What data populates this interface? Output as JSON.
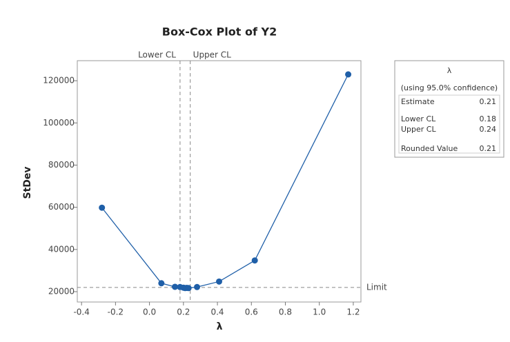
{
  "chart_data": {
    "type": "line",
    "title": "Box-Cox Plot of Y2",
    "x_label": "λ",
    "y_label": "StDev",
    "x": [
      -0.28,
      0.07,
      0.15,
      0.18,
      0.2,
      0.21,
      0.22,
      0.23,
      0.28,
      0.41,
      0.62,
      1.17
    ],
    "values": [
      59800,
      24000,
      22300,
      22200,
      21900,
      21700,
      21800,
      21700,
      22200,
      24800,
      34800,
      123000
    ],
    "color": "#1f5fa8",
    "xlim": [
      -0.425,
      1.245
    ],
    "ylim": [
      15100,
      129500
    ],
    "xticks": [
      -0.4,
      -0.2,
      {
        "value": 0,
        "label": "0.0"
      },
      0.2,
      0.4,
      0.6,
      0.8,
      {
        "value": 1,
        "label": "1.0"
      },
      1.2
    ],
    "yticks": [
      20000,
      40000,
      60000,
      80000,
      100000,
      120000
    ],
    "ref_lines": {
      "lower_cl": {
        "value": 0.18,
        "label": "Lower CL"
      },
      "upper_cl": {
        "value": 0.24,
        "label": "Upper CL"
      },
      "limit": {
        "value": 22000,
        "label": "Limit"
      }
    },
    "legend": {
      "title": "λ",
      "subtitle": "(using 95.0% confidence)",
      "rows": [
        {
          "label": "Estimate",
          "value": 0.21
        },
        {
          "label": "Lower CL",
          "value": 0.18
        },
        {
          "label": "Upper CL",
          "value": 0.24
        },
        {
          "label": "Rounded Value",
          "value": 0.21
        }
      ]
    }
  }
}
